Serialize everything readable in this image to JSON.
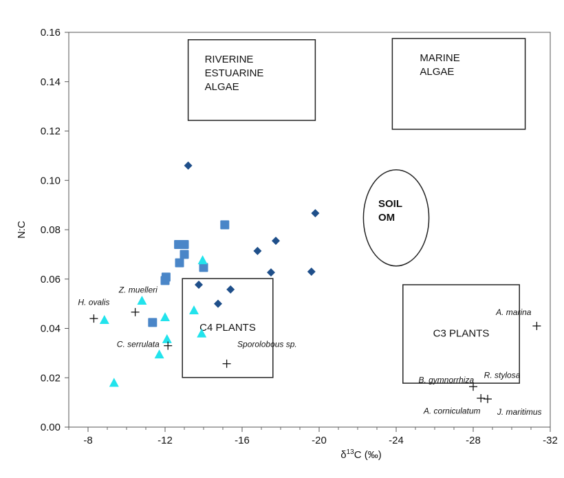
{
  "chart_data": {
    "type": "scatter",
    "title": "",
    "xlabel": "δ13C (‰)",
    "xlabel_parts": {
      "prefix": "δ",
      "sup": "13",
      "suffix": "C (‰)"
    },
    "ylabel": "N:C",
    "xlim": [
      -7,
      -32
    ],
    "ylim": [
      0,
      0.16
    ],
    "x_reversed": true,
    "grid": false,
    "legend": "none",
    "xticks": [
      -8,
      -12,
      -16,
      -20,
      -24,
      -28,
      -32
    ],
    "yticks": [
      "0.00",
      "0.02",
      "0.04",
      "0.06",
      "0.08",
      "0.10",
      "0.12",
      "0.14",
      "0.16"
    ],
    "series": [
      {
        "marker": "diamond",
        "color": "#1f4f8a",
        "points": [
          [
            -13.2,
            0.106
          ],
          [
            -19.8,
            0.0867
          ],
          [
            -17.75,
            0.0755
          ],
          [
            -16.8,
            0.0714
          ],
          [
            -17.5,
            0.0627
          ],
          [
            -19.6,
            0.063
          ],
          [
            -13.75,
            0.0577
          ],
          [
            -15.4,
            0.0558
          ],
          [
            -14.75,
            0.05
          ]
        ]
      },
      {
        "marker": "square",
        "color": "#4a86c8",
        "points": [
          [
            -15.1,
            0.082
          ],
          [
            -12.7,
            0.074
          ],
          [
            -13.0,
            0.074
          ],
          [
            -13.0,
            0.07
          ],
          [
            -12.75,
            0.0666
          ],
          [
            -14.0,
            0.0647
          ],
          [
            -12.05,
            0.0608
          ],
          [
            -12.0,
            0.0594
          ],
          [
            -11.35,
            0.0424
          ]
        ]
      },
      {
        "marker": "triangle",
        "color": "#22e3ec",
        "points": [
          [
            -13.95,
            0.0677
          ],
          [
            -10.8,
            0.0513
          ],
          [
            -13.5,
            0.0474
          ],
          [
            -12.0,
            0.0446
          ],
          [
            -8.85,
            0.0435
          ],
          [
            -13.9,
            0.038
          ],
          [
            -12.1,
            0.0357
          ],
          [
            -11.7,
            0.0295
          ],
          [
            -9.35,
            0.018
          ]
        ]
      },
      {
        "marker": "cross",
        "color": "#111111",
        "points": [
          [
            -8.3,
            0.044
          ],
          [
            -10.45,
            0.0466
          ],
          [
            -12.15,
            0.033
          ],
          [
            -15.2,
            0.0257
          ],
          [
            -31.3,
            0.041
          ],
          [
            -28.0,
            0.0164
          ],
          [
            -28.4,
            0.0117
          ],
          [
            -28.75,
            0.0114
          ]
        ]
      }
    ],
    "regions": [
      {
        "shape": "rect",
        "x": [
          -13.2,
          -19.8
        ],
        "y": [
          0.1243,
          0.157
        ],
        "lines": [
          "RIVERINE",
          "ESTUARINE",
          "ALGAE"
        ]
      },
      {
        "shape": "rect",
        "x": [
          -23.8,
          -30.7
        ],
        "y": [
          0.1207,
          0.1575
        ],
        "lines": [
          "MARINE",
          "ALGAE"
        ]
      },
      {
        "shape": "ellipse",
        "cx": -24.0,
        "cy": 0.0848,
        "rx": 1.7,
        "ry": 0.0195,
        "lines": [
          "SOIL",
          "OM"
        ]
      },
      {
        "shape": "rect",
        "x": [
          -12.9,
          -17.6
        ],
        "y": [
          0.0201,
          0.0602
        ],
        "lines": [
          "C4 PLANTS"
        ]
      },
      {
        "shape": "rect",
        "x": [
          -24.35,
          -30.4
        ],
        "y": [
          0.0178,
          0.0577
        ],
        "lines": [
          "C3 PLANTS"
        ]
      }
    ],
    "annotations": [
      {
        "text": "Z. muelleri",
        "x": -10.6,
        "y": 0.0545
      },
      {
        "text": "H. ovalis",
        "x": -8.3,
        "y": 0.0495
      },
      {
        "text": "C. serrulata",
        "x": -10.6,
        "y": 0.0325
      },
      {
        "text": "Sporolobous sp.",
        "x": -17.3,
        "y": 0.0325
      },
      {
        "text": "A. marina",
        "x": -30.1,
        "y": 0.0455
      },
      {
        "text": "B. gymnorrhiza",
        "x": -26.6,
        "y": 0.018
      },
      {
        "text": "R. stylosa",
        "x": -29.5,
        "y": 0.02
      },
      {
        "text": "A. corniculatum",
        "x": -26.9,
        "y": 0.0055
      },
      {
        "text": "J. maritimus",
        "x": -30.4,
        "y": 0.005
      }
    ]
  }
}
